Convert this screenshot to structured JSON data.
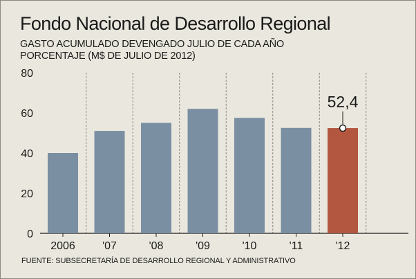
{
  "header": {
    "title": "Fondo Nacional de Desarrollo Regional",
    "subtitle_line1": "GASTO ACUMULADO DEVENGADO JULIO DE CADA AÑO",
    "subtitle_line2": "PORCENTAJE (M$ DE JULIO DE 2012)"
  },
  "footer": {
    "source": "FUENTE: SUBSECRETARÍA DE DESARROLLO REGIONAL Y ADMINISTRATIVO"
  },
  "colors": {
    "background": "#eae8de",
    "bar": "#7b8fa3",
    "highlight_bar": "#b35740",
    "grid": "#8a8780"
  },
  "chart_data": {
    "type": "bar",
    "title": "Fondo Nacional de Desarrollo Regional",
    "subtitle": "GASTO ACUMULADO DEVENGADO JULIO DE CADA AÑO / PORCENTAJE (M$ DE JULIO DE 2012)",
    "categories": [
      "2006",
      "'07",
      "'08",
      "'09",
      "'10",
      "'11",
      "'12"
    ],
    "values": [
      40,
      51,
      55,
      62,
      57.5,
      52.5,
      52.4
    ],
    "highlight_index": 6,
    "annotation": {
      "category": "'12",
      "text": "52,4"
    },
    "y_ticks": [
      "0",
      "20",
      "40",
      "60",
      "80"
    ],
    "ylim": [
      0,
      80
    ],
    "grid": "vertical dashed separators between categories",
    "legend": "none"
  }
}
